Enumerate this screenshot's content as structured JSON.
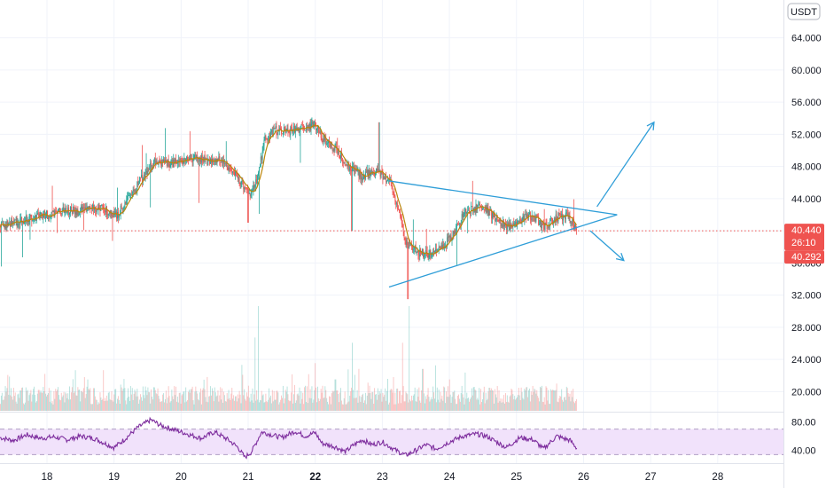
{
  "chart_data": {
    "type": "candlestick",
    "quote_currency": "USDT",
    "y_axis": {
      "min": 17.5,
      "max": 66.5,
      "ticks": [
        20,
        24,
        28,
        32,
        36,
        40,
        44,
        48,
        52,
        56,
        60,
        64
      ],
      "tick_labels": [
        "20.000",
        "24.000",
        "28.000",
        "32.000",
        "36.000",
        "40.000",
        "44.000",
        "48.000",
        "52.000",
        "56.000",
        "60.000",
        "64.000"
      ]
    },
    "x_axis": {
      "min_day": 17.3,
      "max_day": 28.98,
      "ticks": [
        18,
        19,
        20,
        21,
        22,
        23,
        24,
        25,
        26,
        27,
        28
      ],
      "tick_labels": [
        "18",
        "19",
        "20",
        "21",
        "22",
        "23",
        "24",
        "25",
        "26",
        "27",
        "28"
      ],
      "bold_ticks": [
        "22"
      ]
    },
    "grid": true,
    "colors": {
      "up": "#26a69a",
      "down": "#ef5350",
      "ma": "#b8860b",
      "trendline": "#2f9ed8",
      "rsi_line": "#7e2e9e",
      "rsi_band": "#f1e2fb",
      "price_tag": "#ef5350"
    },
    "price_path": [
      [
        17.3,
        40.5
      ],
      [
        17.6,
        41.3
      ],
      [
        17.9,
        41.8
      ],
      [
        18.2,
        42.4
      ],
      [
        18.5,
        42.5
      ],
      [
        18.8,
        42.8
      ],
      [
        19.05,
        42.0
      ],
      [
        19.3,
        45.0
      ],
      [
        19.45,
        47.0
      ],
      [
        19.6,
        48.5
      ],
      [
        19.8,
        48.3
      ],
      [
        20.0,
        48.7
      ],
      [
        20.2,
        49.3
      ],
      [
        20.4,
        48.6
      ],
      [
        20.6,
        48.8
      ],
      [
        20.8,
        47.2
      ],
      [
        20.95,
        45.5
      ],
      [
        21.05,
        44.5
      ],
      [
        21.15,
        47.0
      ],
      [
        21.25,
        51.5
      ],
      [
        21.4,
        52.5
      ],
      [
        21.6,
        52.3
      ],
      [
        21.8,
        52.8
      ],
      [
        22.0,
        53.2
      ],
      [
        22.1,
        51.5
      ],
      [
        22.3,
        50.2
      ],
      [
        22.5,
        48.0
      ],
      [
        22.7,
        46.8
      ],
      [
        22.9,
        47.5
      ],
      [
        23.1,
        46.3
      ],
      [
        23.25,
        42.5
      ],
      [
        23.35,
        38.5
      ],
      [
        23.5,
        37.5
      ],
      [
        23.65,
        37.0
      ],
      [
        23.85,
        37.5
      ],
      [
        24.05,
        39.5
      ],
      [
        24.25,
        42.5
      ],
      [
        24.5,
        43.0
      ],
      [
        24.7,
        41.5
      ],
      [
        24.85,
        40.5
      ],
      [
        25.0,
        40.8
      ],
      [
        25.15,
        42.0
      ],
      [
        25.3,
        41.5
      ],
      [
        25.4,
        40.5
      ],
      [
        25.6,
        41.7
      ],
      [
        25.75,
        41.8
      ],
      [
        25.9,
        40.44
      ]
    ],
    "volume_range": [
      0,
      10
    ],
    "volume_spikes": [
      [
        21.1,
        7.0
      ],
      [
        21.15,
        10.0
      ],
      [
        22.55,
        6.5
      ],
      [
        23.3,
        6.5
      ],
      [
        23.4,
        10.0
      ],
      [
        23.6,
        4.0
      ],
      [
        22.3,
        3.0
      ],
      [
        24.0,
        3.0
      ],
      [
        21.9,
        3.5
      ]
    ],
    "rsi": {
      "range": [
        22,
        92
      ],
      "ticks": [
        40,
        80
      ],
      "tick_labels": [
        "40.00",
        "80.00"
      ],
      "band": [
        34,
        70
      ],
      "path": [
        [
          17.3,
          58
        ],
        [
          17.5,
          54
        ],
        [
          17.7,
          62
        ],
        [
          17.9,
          57
        ],
        [
          18.1,
          59
        ],
        [
          18.3,
          55
        ],
        [
          18.5,
          60
        ],
        [
          18.7,
          57
        ],
        [
          19.0,
          44
        ],
        [
          19.15,
          55
        ],
        [
          19.35,
          72
        ],
        [
          19.55,
          83
        ],
        [
          19.7,
          75
        ],
        [
          19.9,
          69
        ],
        [
          20.1,
          63
        ],
        [
          20.3,
          57
        ],
        [
          20.5,
          66
        ],
        [
          20.7,
          55
        ],
        [
          20.85,
          44
        ],
        [
          20.95,
          30
        ],
        [
          21.05,
          38
        ],
        [
          21.2,
          66
        ],
        [
          21.35,
          62
        ],
        [
          21.5,
          58
        ],
        [
          21.7,
          67
        ],
        [
          21.85,
          60
        ],
        [
          22.0,
          65
        ],
        [
          22.1,
          50
        ],
        [
          22.3,
          45
        ],
        [
          22.45,
          38
        ],
        [
          22.55,
          46
        ],
        [
          22.7,
          55
        ],
        [
          22.85,
          48
        ],
        [
          23.0,
          52
        ],
        [
          23.2,
          40
        ],
        [
          23.35,
          33
        ],
        [
          23.5,
          40
        ],
        [
          23.65,
          48
        ],
        [
          23.8,
          42
        ],
        [
          24.0,
          52
        ],
        [
          24.2,
          60
        ],
        [
          24.4,
          63
        ],
        [
          24.55,
          60
        ],
        [
          24.7,
          52
        ],
        [
          24.85,
          44
        ],
        [
          25.05,
          58
        ],
        [
          25.25,
          55
        ],
        [
          25.4,
          42
        ],
        [
          25.6,
          60
        ],
        [
          25.8,
          54
        ],
        [
          25.9,
          43
        ]
      ]
    },
    "triangle": {
      "upper_line": [
        [
          23.1,
          46.2
        ],
        [
          26.5,
          42.0
        ]
      ],
      "lower_line": [
        [
          23.1,
          33.0
        ],
        [
          26.5,
          42.0
        ]
      ],
      "arrow_up": [
        [
          26.2,
          43.0
        ],
        [
          27.05,
          53.5
        ]
      ],
      "arrow_down": [
        [
          26.1,
          40.0
        ],
        [
          26.6,
          36.3
        ]
      ]
    },
    "last_price": {
      "reference_line": 40.0,
      "tag_price": "40.440",
      "tag_countdown": "26:10",
      "tag_low": "40.292"
    }
  }
}
